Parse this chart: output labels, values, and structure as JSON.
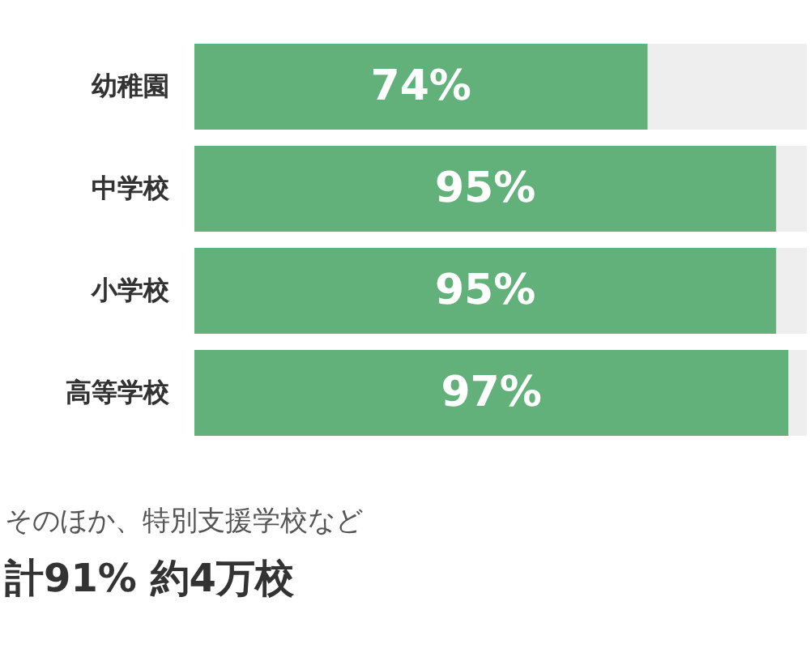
{
  "chart_data": {
    "type": "bar",
    "orientation": "horizontal",
    "categories": [
      "幼稚園",
      "中学校",
      "小学校",
      "高等学校"
    ],
    "color": "#62b07a",
    "values": [
      74,
      95,
      95,
      97
    ],
    "value_labels": [
      "74%",
      "95%",
      "95%",
      "97%"
    ],
    "tick_labels": "y",
    "grid": false,
    "annotations": [
      "そのほか、特別支援学校など",
      "計91% 約4万校"
    ]
  }
}
